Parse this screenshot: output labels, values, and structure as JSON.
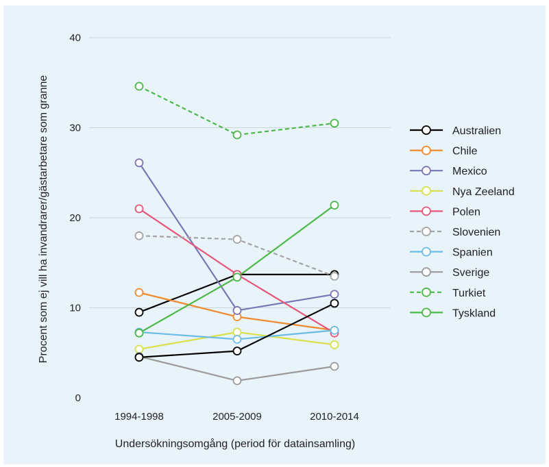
{
  "chart_data": {
    "type": "line",
    "title": "",
    "xlabel": "Undersökningsomgång (period för datainsamling)",
    "ylabel": "Procent som ej vill ha invandrarer/gästarbetare som granne",
    "categories": [
      "1994-1998",
      "2005-2009",
      "2010-2014"
    ],
    "ylim": [
      0,
      40
    ],
    "yticks": [
      0,
      10,
      20,
      30,
      40
    ],
    "grid": "horizontal",
    "legend_position": "right",
    "series": [
      {
        "name": "Australien",
        "color": "#000000",
        "dash": false,
        "values": [
          9.5,
          13.7,
          13.7
        ]
      },
      {
        "name": "Chile",
        "color": "#f0892c",
        "dash": false,
        "values": [
          11.7,
          9.0,
          7.5
        ]
      },
      {
        "name": "Mexico",
        "color": "#7a76b5",
        "dash": false,
        "values": [
          26.1,
          9.7,
          11.5
        ]
      },
      {
        "name": "Nya Zeeland",
        "color": "#d9e14a",
        "dash": false,
        "values": [
          5.4,
          7.3,
          5.9
        ]
      },
      {
        "name": "Polen",
        "color": "#e8557a",
        "dash": false,
        "values": [
          21.0,
          13.7,
          7.2
        ]
      },
      {
        "name": "Slovenien",
        "color": "#a3a3a3",
        "dash": true,
        "values": [
          18.0,
          17.6,
          13.5
        ]
      },
      {
        "name": "Spanien",
        "color": "#6bbde6",
        "dash": false,
        "values": [
          7.3,
          6.5,
          7.5
        ]
      },
      {
        "name": "Sverige",
        "color": "#9a9a9a",
        "dash": false,
        "values": [
          4.6,
          1.9,
          3.5
        ]
      },
      {
        "name": "Turkiet",
        "color": "#4cb848",
        "dash": true,
        "values": [
          34.6,
          29.2,
          30.5
        ]
      },
      {
        "name": "Tyskland",
        "color": "#4cb848",
        "dash": false,
        "values": [
          7.2,
          13.4,
          21.4
        ]
      }
    ],
    "extra_series": [
      {
        "name": "",
        "color": "#000000",
        "dash": false,
        "values": [
          4.5,
          5.2,
          10.5
        ]
      }
    ]
  }
}
